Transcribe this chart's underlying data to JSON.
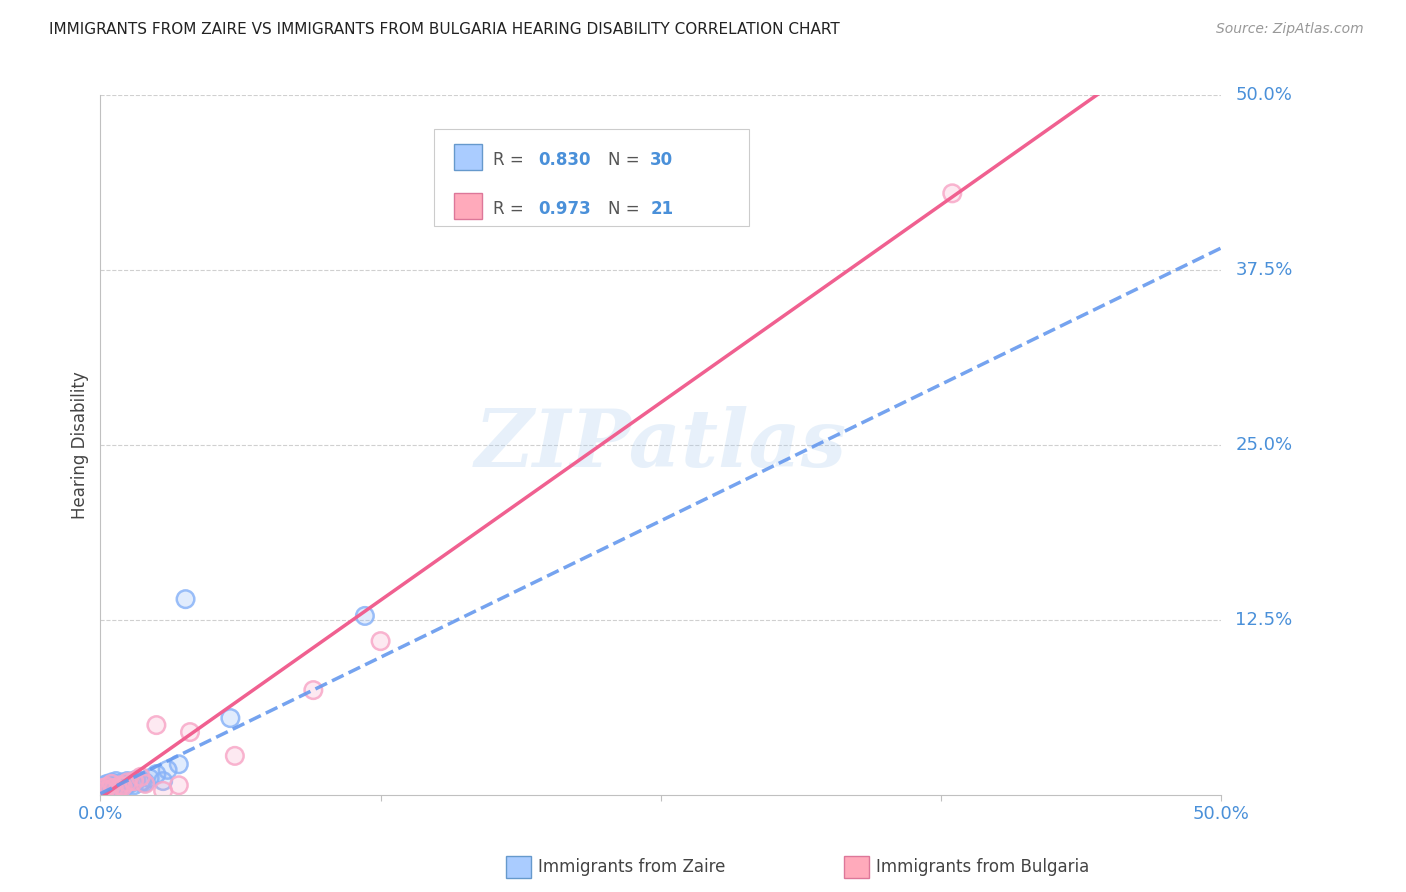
{
  "title": "IMMIGRANTS FROM ZAIRE VS IMMIGRANTS FROM BULGARIA HEARING DISABILITY CORRELATION CHART",
  "source": "Source: ZipAtlas.com",
  "ylabel": "Hearing Disability",
  "xlim": [
    0.0,
    0.5
  ],
  "ylim": [
    0.0,
    0.5
  ],
  "color_zaire": "#8ab4f8",
  "color_bulgaria": "#f8a8c8",
  "color_text_blue": "#4a90d9",
  "color_grid": "#d0d0d0",
  "color_spine": "#c0c0c0",
  "legend_r_zaire": "0.830",
  "legend_n_zaire": "30",
  "legend_r_bulgaria": "0.973",
  "legend_n_bulgaria": "21",
  "watermark": "ZIPatlas",
  "background_color": "#ffffff",
  "zaire_x": [
    0.001,
    0.002,
    0.002,
    0.003,
    0.003,
    0.004,
    0.005,
    0.005,
    0.006,
    0.007,
    0.007,
    0.008,
    0.009,
    0.01,
    0.011,
    0.012,
    0.013,
    0.015,
    0.016,
    0.018,
    0.019,
    0.02,
    0.022,
    0.025,
    0.028,
    0.03,
    0.035,
    0.038,
    0.058,
    0.118
  ],
  "zaire_y": [
    0.005,
    0.004,
    0.007,
    0.003,
    0.008,
    0.006,
    0.004,
    0.009,
    0.007,
    0.005,
    0.01,
    0.008,
    0.007,
    0.009,
    0.006,
    0.01,
    0.008,
    0.007,
    0.011,
    0.009,
    0.01,
    0.009,
    0.012,
    0.015,
    0.01,
    0.018,
    0.022,
    0.14,
    0.055,
    0.128
  ],
  "bulgaria_x": [
    0.001,
    0.002,
    0.003,
    0.004,
    0.005,
    0.006,
    0.008,
    0.009,
    0.01,
    0.012,
    0.015,
    0.018,
    0.02,
    0.025,
    0.028,
    0.035,
    0.04,
    0.06,
    0.095,
    0.125,
    0.38
  ],
  "bulgaria_y": [
    0.005,
    0.003,
    0.006,
    0.004,
    0.008,
    0.005,
    0.004,
    0.007,
    0.006,
    0.009,
    0.01,
    0.013,
    0.008,
    0.05,
    0.003,
    0.007,
    0.045,
    0.028,
    0.075,
    0.11,
    0.43
  ]
}
